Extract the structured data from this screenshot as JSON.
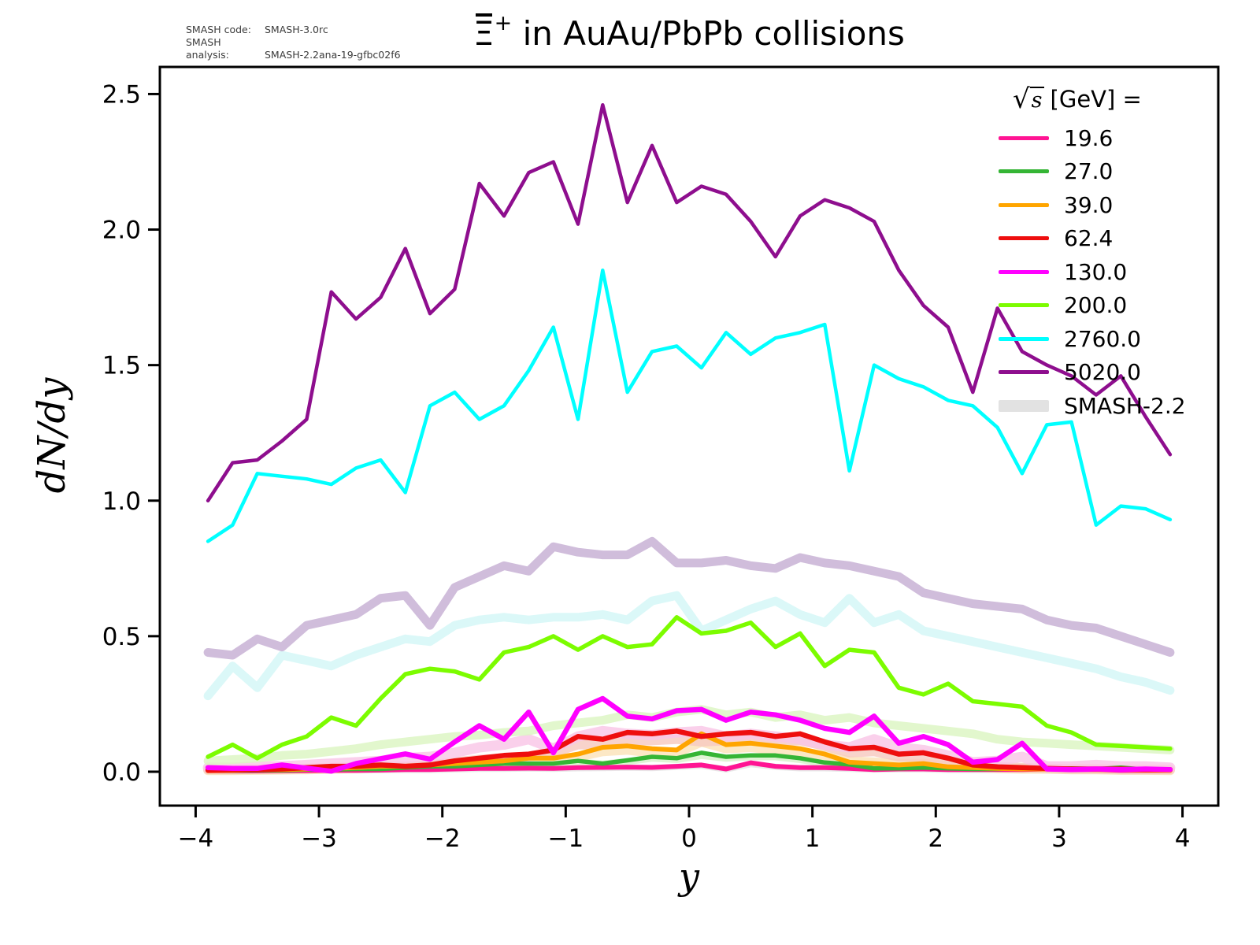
{
  "annotations": {
    "rows": [
      {
        "label": "SMASH code:",
        "value": "SMASH-3.0rc"
      },
      {
        "label": "SMASH analysis:",
        "value": "SMASH-2.2ana-19-gfbc02f6"
      }
    ]
  },
  "title": {
    "particle": "Ξ",
    "has_overbar": true,
    "superscript": "+",
    "rest": " in AuAu/PbPb collisions"
  },
  "legend": {
    "title_sqrt": "√",
    "title_sqrt_arg": "s",
    "title_units": "[GeV] =",
    "entries": [
      {
        "label": "19.6",
        "color": "#FF1493",
        "type": "line"
      },
      {
        "label": "27.0",
        "color": "#35B535",
        "type": "line"
      },
      {
        "label": "39.0",
        "color": "#FFA500",
        "type": "line"
      },
      {
        "label": "62.4",
        "color": "#EE0E0E",
        "type": "line"
      },
      {
        "label": "130.0",
        "color": "#FF00FF",
        "type": "line"
      },
      {
        "label": "200.0",
        "color": "#7CFC00",
        "type": "line"
      },
      {
        "label": "2760.0",
        "color": "#00FFFF",
        "type": "line"
      },
      {
        "label": "5020.0",
        "color": "#8E0E8E",
        "type": "line"
      },
      {
        "label": "SMASH-2.2",
        "color": "#E2E2E2",
        "type": "band"
      }
    ]
  },
  "axes": {
    "xlabel": "y",
    "ylabel": "dN/dy",
    "xlim": [
      -4.29,
      4.29
    ],
    "ylim": [
      -0.125,
      2.6
    ],
    "x_ticks": [
      {
        "value": -4,
        "label": "−4"
      },
      {
        "value": -3,
        "label": "−3"
      },
      {
        "value": -2,
        "label": "−2"
      },
      {
        "value": -1,
        "label": "−1"
      },
      {
        "value": 0,
        "label": "0"
      },
      {
        "value": 1,
        "label": "1"
      },
      {
        "value": 2,
        "label": "2"
      },
      {
        "value": 3,
        "label": "3"
      },
      {
        "value": 4,
        "label": "4"
      }
    ],
    "y_ticks": [
      {
        "value": 0.0,
        "label": "0.0"
      },
      {
        "value": 0.5,
        "label": "0.5"
      },
      {
        "value": 1.0,
        "label": "1.0"
      },
      {
        "value": 1.5,
        "label": "1.5"
      },
      {
        "value": 2.0,
        "label": "2.0"
      },
      {
        "value": 2.5,
        "label": "2.5"
      }
    ]
  },
  "chart_data": {
    "type": "line",
    "title": "Ξ̄⁺ in AuAu/PbPb collisions",
    "xlabel": "y",
    "ylabel": "dN/dy",
    "xlim": [
      -4.29,
      4.29
    ],
    "ylim": [
      -0.125,
      2.6
    ],
    "legend_position": "upper right",
    "grid": false,
    "x": [
      -3.9,
      -3.7,
      -3.5,
      -3.3,
      -3.1,
      -2.9,
      -2.7,
      -2.5,
      -2.3,
      -2.1,
      -1.9,
      -1.7,
      -1.5,
      -1.3,
      -1.1,
      -0.9,
      -0.7,
      -0.5,
      -0.3,
      -0.1,
      0.1,
      0.3,
      0.5,
      0.7,
      0.9,
      1.1,
      1.3,
      1.5,
      1.7,
      1.9,
      2.1,
      2.3,
      2.5,
      2.7,
      2.9,
      3.1,
      3.3,
      3.5,
      3.7,
      3.9
    ],
    "series": [
      {
        "name": "SMASH-2.2 19.6",
        "kind": "band",
        "color": "#E4E4E4",
        "width": 8,
        "values": [
          0.003,
          0.003,
          0.003,
          0.004,
          0.004,
          0.005,
          0.005,
          0.006,
          0.007,
          0.007,
          0.009,
          0.011,
          0.011,
          0.012,
          0.011,
          0.013,
          0.014,
          0.015,
          0.014,
          0.018,
          0.022,
          0.009,
          0.028,
          0.018,
          0.013,
          0.013,
          0.011,
          0.008,
          0.009,
          0.009,
          0.007,
          0.007,
          0.007,
          0.007,
          0.009,
          0.007,
          0.007,
          0.005,
          0.005,
          0.004
        ]
      },
      {
        "name": "SMASH-2.2 27.0",
        "kind": "band",
        "color": "#D9F2CC",
        "width": 9,
        "values": [
          0.004,
          0.004,
          0.004,
          0.005,
          0.006,
          0.007,
          0.008,
          0.009,
          0.012,
          0.015,
          0.018,
          0.02,
          0.025,
          0.027,
          0.027,
          0.035,
          0.028,
          0.038,
          0.05,
          0.045,
          0.06,
          0.05,
          0.055,
          0.055,
          0.045,
          0.03,
          0.024,
          0.012,
          0.013,
          0.015,
          0.013,
          0.01,
          0.009,
          0.01,
          0.009,
          0.01,
          0.009,
          0.012,
          0.007,
          0.005
        ]
      },
      {
        "name": "SMASH-2.2 39.0",
        "kind": "band",
        "color": "#FBE3B9",
        "width": 12,
        "values": [
          0.005,
          0.005,
          0.006,
          0.007,
          0.008,
          0.01,
          0.012,
          0.015,
          0.018,
          0.02,
          0.025,
          0.03,
          0.035,
          0.04,
          0.045,
          0.055,
          0.075,
          0.08,
          0.07,
          0.07,
          0.11,
          0.085,
          0.09,
          0.08,
          0.07,
          0.06,
          0.04,
          0.035,
          0.03,
          0.03,
          0.022,
          0.018,
          0.012,
          0.01,
          0.01,
          0.008,
          0.008,
          0.006,
          0.006,
          0.005
        ]
      },
      {
        "name": "SMASH-2.2 62.4",
        "kind": "band",
        "color": "#F7C9BF",
        "width": 12,
        "values": [
          0.008,
          0.008,
          0.01,
          0.01,
          0.012,
          0.015,
          0.018,
          0.02,
          0.02,
          0.025,
          0.035,
          0.045,
          0.05,
          0.055,
          0.07,
          0.1,
          0.1,
          0.115,
          0.115,
          0.12,
          0.11,
          0.115,
          0.12,
          0.11,
          0.115,
          0.095,
          0.07,
          0.075,
          0.055,
          0.055,
          0.04,
          0.025,
          0.018,
          0.015,
          0.012,
          0.01,
          0.01,
          0.008,
          0.008,
          0.008
        ]
      },
      {
        "name": "SMASH-2.2 130.0",
        "kind": "band",
        "color": "#F9C6E6",
        "width": 13,
        "values": [
          0.015,
          0.015,
          0.02,
          0.02,
          0.025,
          0.03,
          0.035,
          0.04,
          0.05,
          0.055,
          0.07,
          0.09,
          0.1,
          0.12,
          0.085,
          0.13,
          0.15,
          0.14,
          0.135,
          0.145,
          0.15,
          0.13,
          0.14,
          0.13,
          0.12,
          0.1,
          0.09,
          0.12,
          0.09,
          0.08,
          0.06,
          0.035,
          0.04,
          0.055,
          0.02,
          0.02,
          0.025,
          0.02,
          0.02,
          0.015
        ]
      },
      {
        "name": "SMASH-2.2 200.0",
        "kind": "band",
        "color": "#DCF5C2",
        "width": 11,
        "values": [
          0.04,
          0.045,
          0.05,
          0.06,
          0.065,
          0.075,
          0.085,
          0.1,
          0.11,
          0.12,
          0.13,
          0.135,
          0.145,
          0.15,
          0.17,
          0.18,
          0.19,
          0.21,
          0.2,
          0.22,
          0.23,
          0.21,
          0.22,
          0.2,
          0.21,
          0.19,
          0.2,
          0.18,
          0.17,
          0.16,
          0.15,
          0.14,
          0.12,
          0.11,
          0.105,
          0.1,
          0.095,
          0.09,
          0.085,
          0.08
        ]
      },
      {
        "name": "SMASH-2.2 2760.0",
        "kind": "band",
        "color": "#D3F6F6",
        "width": 11,
        "values": [
          0.28,
          0.39,
          0.31,
          0.43,
          0.41,
          0.39,
          0.43,
          0.46,
          0.49,
          0.48,
          0.54,
          0.56,
          0.57,
          0.56,
          0.57,
          0.57,
          0.58,
          0.56,
          0.63,
          0.65,
          0.52,
          0.56,
          0.6,
          0.63,
          0.58,
          0.55,
          0.64,
          0.55,
          0.58,
          0.52,
          0.5,
          0.48,
          0.46,
          0.44,
          0.42,
          0.4,
          0.38,
          0.35,
          0.33,
          0.3
        ]
      },
      {
        "name": "SMASH-2.2 5020.0",
        "kind": "band",
        "color": "#C6AED3",
        "width": 11,
        "values": [
          0.44,
          0.43,
          0.49,
          0.46,
          0.54,
          0.56,
          0.58,
          0.64,
          0.65,
          0.54,
          0.68,
          0.72,
          0.76,
          0.74,
          0.83,
          0.81,
          0.8,
          0.8,
          0.85,
          0.77,
          0.77,
          0.78,
          0.76,
          0.75,
          0.79,
          0.77,
          0.76,
          0.74,
          0.72,
          0.66,
          0.64,
          0.62,
          0.61,
          0.6,
          0.56,
          0.54,
          0.53,
          0.5,
          0.47,
          0.44
        ]
      },
      {
        "name": "19.6",
        "kind": "model",
        "color": "#FF1493",
        "width": 6,
        "values": [
          0.003,
          0.003,
          0.003,
          0.004,
          0.004,
          0.005,
          0.005,
          0.006,
          0.008,
          0.008,
          0.01,
          0.012,
          0.012,
          0.013,
          0.012,
          0.015,
          0.016,
          0.017,
          0.016,
          0.02,
          0.025,
          0.01,
          0.033,
          0.02,
          0.015,
          0.015,
          0.012,
          0.008,
          0.01,
          0.01,
          0.008,
          0.008,
          0.008,
          0.008,
          0.01,
          0.008,
          0.008,
          0.005,
          0.005,
          0.005
        ]
      },
      {
        "name": "27.0",
        "kind": "model",
        "color": "#35B535",
        "width": 5.5,
        "values": [
          0.004,
          0.004,
          0.005,
          0.005,
          0.008,
          0.008,
          0.01,
          0.01,
          0.015,
          0.02,
          0.02,
          0.025,
          0.03,
          0.03,
          0.03,
          0.04,
          0.03,
          0.042,
          0.055,
          0.05,
          0.07,
          0.055,
          0.06,
          0.06,
          0.05,
          0.034,
          0.027,
          0.012,
          0.012,
          0.015,
          0.012,
          0.01,
          0.01,
          0.012,
          0.01,
          0.012,
          0.01,
          0.015,
          0.008,
          0.005
        ]
      },
      {
        "name": "39.0",
        "kind": "model",
        "color": "#FFA500",
        "width": 6,
        "values": [
          0.004,
          0.005,
          0.008,
          0.008,
          0.01,
          0.012,
          0.015,
          0.02,
          0.02,
          0.025,
          0.03,
          0.035,
          0.04,
          0.05,
          0.05,
          0.065,
          0.09,
          0.095,
          0.085,
          0.08,
          0.14,
          0.1,
          0.105,
          0.095,
          0.085,
          0.065,
          0.035,
          0.03,
          0.025,
          0.03,
          0.018,
          0.015,
          0.012,
          0.01,
          0.01,
          0.01,
          0.008,
          0.008,
          0.006,
          0.005
        ]
      },
      {
        "name": "62.4",
        "kind": "model",
        "color": "#EE0E0E",
        "width": 6.5,
        "values": [
          0.006,
          0.008,
          0.008,
          0.01,
          0.015,
          0.02,
          0.02,
          0.025,
          0.02,
          0.025,
          0.04,
          0.05,
          0.06,
          0.065,
          0.08,
          0.13,
          0.12,
          0.145,
          0.14,
          0.15,
          0.13,
          0.14,
          0.145,
          0.13,
          0.14,
          0.11,
          0.085,
          0.09,
          0.065,
          0.07,
          0.05,
          0.025,
          0.018,
          0.015,
          0.012,
          0.01,
          0.01,
          0.01,
          0.008,
          0.008
        ]
      },
      {
        "name": "130.0",
        "kind": "model",
        "color": "#FF00FF",
        "width": 6.5,
        "values": [
          0.015,
          0.012,
          0.012,
          0.025,
          0.013,
          0.002,
          0.03,
          0.048,
          0.066,
          0.046,
          0.11,
          0.17,
          0.12,
          0.22,
          0.07,
          0.23,
          0.27,
          0.205,
          0.195,
          0.225,
          0.23,
          0.19,
          0.22,
          0.21,
          0.19,
          0.16,
          0.145,
          0.205,
          0.105,
          0.13,
          0.1,
          0.035,
          0.045,
          0.105,
          0.01,
          0.008,
          0.01,
          0.008,
          0.01,
          0.008
        ]
      },
      {
        "name": "200.0",
        "kind": "model",
        "color": "#7CFC00",
        "width": 5.5,
        "values": [
          0.055,
          0.1,
          0.05,
          0.1,
          0.13,
          0.2,
          0.17,
          0.27,
          0.36,
          0.38,
          0.37,
          0.34,
          0.44,
          0.46,
          0.5,
          0.45,
          0.5,
          0.46,
          0.47,
          0.57,
          0.51,
          0.52,
          0.55,
          0.46,
          0.51,
          0.39,
          0.45,
          0.44,
          0.31,
          0.285,
          0.325,
          0.26,
          0.25,
          0.24,
          0.17,
          0.145,
          0.1,
          0.095,
          0.09,
          0.085
        ]
      },
      {
        "name": "2760.0",
        "kind": "model",
        "color": "#00FFFF",
        "width": 4.5,
        "values": [
          0.85,
          0.91,
          1.1,
          1.09,
          1.08,
          1.06,
          1.12,
          1.15,
          1.03,
          1.35,
          1.4,
          1.3,
          1.35,
          1.48,
          1.64,
          1.3,
          1.85,
          1.4,
          1.55,
          1.57,
          1.49,
          1.62,
          1.54,
          1.6,
          1.62,
          1.65,
          1.11,
          1.5,
          1.45,
          1.42,
          1.37,
          1.35,
          1.27,
          1.1,
          1.28,
          1.29,
          0.91,
          0.98,
          0.97,
          0.93
        ]
      },
      {
        "name": "5020.0",
        "kind": "model",
        "color": "#8E0E8E",
        "width": 4.5,
        "values": [
          1.0,
          1.14,
          1.15,
          1.22,
          1.3,
          1.77,
          1.67,
          1.75,
          1.93,
          1.69,
          1.78,
          2.17,
          2.05,
          2.21,
          2.25,
          2.02,
          2.46,
          2.1,
          2.31,
          2.1,
          2.16,
          2.13,
          2.03,
          1.9,
          2.05,
          2.11,
          2.08,
          2.03,
          1.85,
          1.72,
          1.64,
          1.4,
          1.71,
          1.55,
          1.5,
          1.46,
          1.39,
          1.46,
          1.31,
          1.17
        ]
      }
    ]
  }
}
